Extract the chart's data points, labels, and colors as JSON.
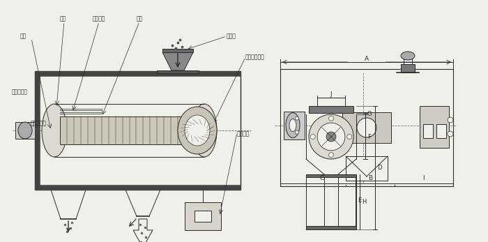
{
  "bg_color": "#f0f0eb",
  "line_color": "#2a2a2a",
  "labels": {
    "fengLun": "风轮",
    "fengLunYePian": "风轮叶片",
    "wangJia": "网架",
    "zhuZhou": "主轴",
    "jinLiaoKou": "进料口",
    "luoXuanShuSong": "螺旋输送系统",
    "culiaoPaiChuKou": "粗料排出口",
    "xiliaoPaiChuKou": "细料排出口",
    "quDongDianJi": "驱动电机",
    "dim_A": "A",
    "dim_B": "B",
    "dim_C": "C",
    "dim_I": "I",
    "dim_J": "J",
    "dim_D": "D",
    "dim_E": "E",
    "dim_F": "F",
    "dim_G": "G",
    "dim_H": "H"
  }
}
